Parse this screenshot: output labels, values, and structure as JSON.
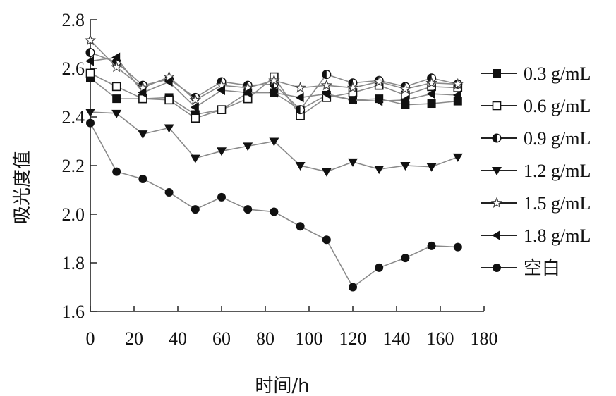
{
  "chart_data": {
    "type": "line",
    "xlabel": "时间/h",
    "ylabel": "吸光度值",
    "xlim": [
      0,
      180
    ],
    "ylim": [
      1.6,
      2.8
    ],
    "x_ticks": [
      "0",
      "20",
      "40",
      "60",
      "80",
      "100",
      "120",
      "140",
      "160",
      "180"
    ],
    "y_ticks": [
      "1.6",
      "1.8",
      "2.0",
      "2.2",
      "2.4",
      "2.6",
      "2.8"
    ],
    "grid": false,
    "legend_position": "right",
    "x": [
      0,
      12,
      24,
      36,
      48,
      60,
      72,
      84,
      96,
      108,
      120,
      132,
      144,
      156,
      168
    ],
    "series": [
      {
        "name": "0.3 g/mL",
        "marker": "square-filled",
        "values": [
          2.56,
          2.475,
          2.475,
          2.48,
          2.41,
          2.43,
          2.5,
          2.5,
          2.43,
          2.49,
          2.47,
          2.475,
          2.45,
          2.455,
          2.465
        ]
      },
      {
        "name": "0.6 g/mL",
        "marker": "square-open",
        "values": [
          2.58,
          2.525,
          2.475,
          2.47,
          2.395,
          2.43,
          2.475,
          2.565,
          2.405,
          2.48,
          2.5,
          2.53,
          2.49,
          2.525,
          2.52
        ]
      },
      {
        "name": "0.9 g/mL",
        "marker": "circle-half",
        "values": [
          2.665,
          2.625,
          2.53,
          2.555,
          2.48,
          2.545,
          2.53,
          2.535,
          2.43,
          2.575,
          2.54,
          2.55,
          2.525,
          2.56,
          2.535
        ]
      },
      {
        "name": "1.2 g/mL",
        "marker": "triangle-down",
        "values": [
          2.42,
          2.415,
          2.33,
          2.355,
          2.23,
          2.26,
          2.28,
          2.3,
          2.2,
          2.175,
          2.215,
          2.185,
          2.2,
          2.195,
          2.235
        ]
      },
      {
        "name": "1.5 g/mL",
        "marker": "star-open",
        "values": [
          2.715,
          2.605,
          2.52,
          2.565,
          2.47,
          2.53,
          2.52,
          2.55,
          2.52,
          2.53,
          2.52,
          2.545,
          2.515,
          2.54,
          2.535
        ]
      },
      {
        "name": "1.8 g/mL",
        "marker": "triangle-left",
        "values": [
          2.63,
          2.645,
          2.5,
          2.545,
          2.44,
          2.51,
          2.5,
          2.5,
          2.48,
          2.495,
          2.47,
          2.465,
          2.47,
          2.495,
          2.49
        ]
      },
      {
        "name": "空白",
        "marker": "circle-filled",
        "values": [
          2.375,
          2.175,
          2.145,
          2.09,
          2.02,
          2.07,
          2.02,
          2.01,
          1.95,
          1.895,
          1.7,
          1.78,
          1.82,
          1.87,
          1.865
        ]
      }
    ]
  }
}
